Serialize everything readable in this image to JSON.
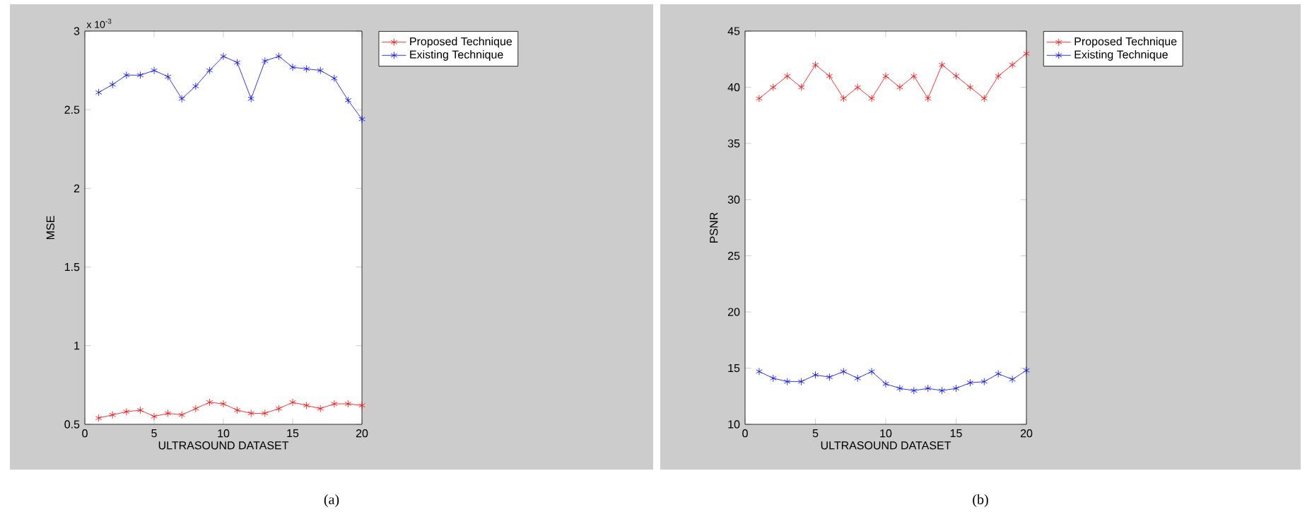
{
  "chart_data": [
    {
      "type": "line",
      "xlabel": "ULTRASOUND DATASET",
      "ylabel": "MSE",
      "marker": "cross",
      "legend": "top right",
      "x": [
        1,
        2,
        3,
        4,
        5,
        6,
        7,
        8,
        9,
        10,
        11,
        12,
        13,
        14,
        15,
        16,
        17,
        18,
        19,
        20
      ],
      "xlim": [
        0,
        20
      ],
      "xticks": [
        0,
        5,
        10,
        15,
        20
      ],
      "ylim": [
        0.5,
        3
      ],
      "yticks": [
        0.5,
        1,
        1.5,
        2,
        2.5,
        3
      ],
      "series": [
        {
          "name": "Proposed Technique",
          "color": "#ff0000",
          "values": [
            0.54,
            0.56,
            0.58,
            0.59,
            0.55,
            0.57,
            0.56,
            0.6,
            0.64,
            0.63,
            0.59,
            0.57,
            0.57,
            0.6,
            0.64,
            0.62,
            0.6,
            0.63,
            0.63,
            0.62
          ]
        },
        {
          "name": "Existing Technique",
          "color": "#0000ff",
          "values": [
            2.61,
            2.66,
            2.72,
            2.72,
            2.75,
            2.71,
            2.57,
            2.65,
            2.75,
            2.84,
            2.8,
            2.57,
            2.81,
            2.84,
            2.77,
            2.76,
            2.75,
            2.7,
            2.56,
            2.44
          ]
        }
      ],
      "annotations": [
        "x 10$^{-3}$",
        "(a)"
      ]
    },
    {
      "type": "line",
      "xlabel": "ULTRASOUND DATASET",
      "ylabel": "PSNR",
      "marker": "cross",
      "legend": "top right",
      "x": [
        1,
        2,
        3,
        4,
        5,
        6,
        7,
        8,
        9,
        10,
        11,
        12,
        13,
        14,
        15,
        16,
        17,
        18,
        19,
        20
      ],
      "xlim": [
        0,
        20
      ],
      "xticks": [
        0,
        5,
        10,
        15,
        20
      ],
      "ylim": [
        10,
        45
      ],
      "yticks": [
        10,
        15,
        20,
        25,
        30,
        35,
        40,
        45
      ],
      "series": [
        {
          "name": "Proposed Technique",
          "color": "#ff0000",
          "values": [
            39,
            40,
            41,
            40,
            42,
            41,
            39,
            40,
            39,
            41,
            40,
            41,
            39,
            42,
            41,
            40,
            39,
            41,
            42,
            43
          ]
        },
        {
          "name": "Existing Technique",
          "color": "#0000ff",
          "values": [
            14.7,
            14.1,
            13.8,
            13.8,
            14.4,
            14.2,
            14.7,
            14.1,
            14.7,
            13.6,
            13.2,
            13.0,
            13.2,
            13.0,
            13.2,
            13.7,
            13.8,
            14.5,
            14.0,
            14.8
          ]
        }
      ],
      "annotations": [
        "(b)"
      ]
    }
  ]
}
